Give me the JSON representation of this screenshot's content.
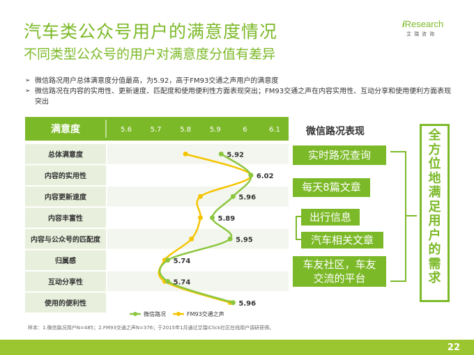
{
  "header": {
    "title": "汽车类公众号用户的满意度情况",
    "subtitle": "不同类型公众号的用户对满意度分值有差异"
  },
  "logo": {
    "i": "i",
    "name": "Research",
    "sub": "艾瑞咨询"
  },
  "bullets": [
    "微信路况用户总体满意度分值最高，为5.92，高于FM93交通之声用户的满意度",
    "微信路况在内容的实用性、更新速度、匹配度和使用便利性方面表现突出；FM93交通之声在内容实用性、互动分享和使用便利方面表现突出"
  ],
  "colors": {
    "accent": "#7cb928",
    "fm93": "#f5c400",
    "weixin": "#8cc63f",
    "row_band": "#e8efdc"
  },
  "chart_data": {
    "type": "line",
    "orientation": "horizontal",
    "header_label": "满意度",
    "categories": [
      "总体满意度",
      "内容的实用性",
      "内容更新速度",
      "内容丰富性",
      "内容与公众号的匹配度",
      "归属感",
      "互动分享性",
      "使用的便利性"
    ],
    "xlim": [
      5.6,
      6.1
    ],
    "xticks": [
      "5.6",
      "5.7",
      "5.8",
      "5.9",
      "6",
      "6.1"
    ],
    "series": [
      {
        "name": "微信路况",
        "values": [
          5.92,
          6.02,
          5.96,
          5.89,
          5.95,
          5.74,
          5.74,
          5.96
        ],
        "labels": [
          "5.92",
          "6.02",
          "5.96",
          "5.89",
          "5.95",
          "5.74",
          "5.74",
          "5.96"
        ]
      },
      {
        "name": "FM93交通之声",
        "values": [
          5.8,
          6.02,
          5.85,
          5.85,
          5.82,
          5.73,
          5.73,
          5.95
        ]
      }
    ]
  },
  "right_panel": {
    "title": "微信路况表现",
    "items": [
      "实时路况查询",
      "每天8篇文章",
      "出行信息",
      "汽车相关文章",
      "车友社区，车友交流的平台"
    ],
    "item5_lines": [
      "车友社区，车友",
      "交流的平台"
    ],
    "summary_chars": [
      "全",
      "方",
      "位",
      "地",
      "满",
      "足",
      "用",
      "户",
      "的",
      "需",
      "求"
    ]
  },
  "footnote": "样本：1.微信路况用户N=485；2.FM93交通之声N=376；于2015年1月通过艾瑞iClick社区在线用户调研获得。",
  "page_number": "22"
}
